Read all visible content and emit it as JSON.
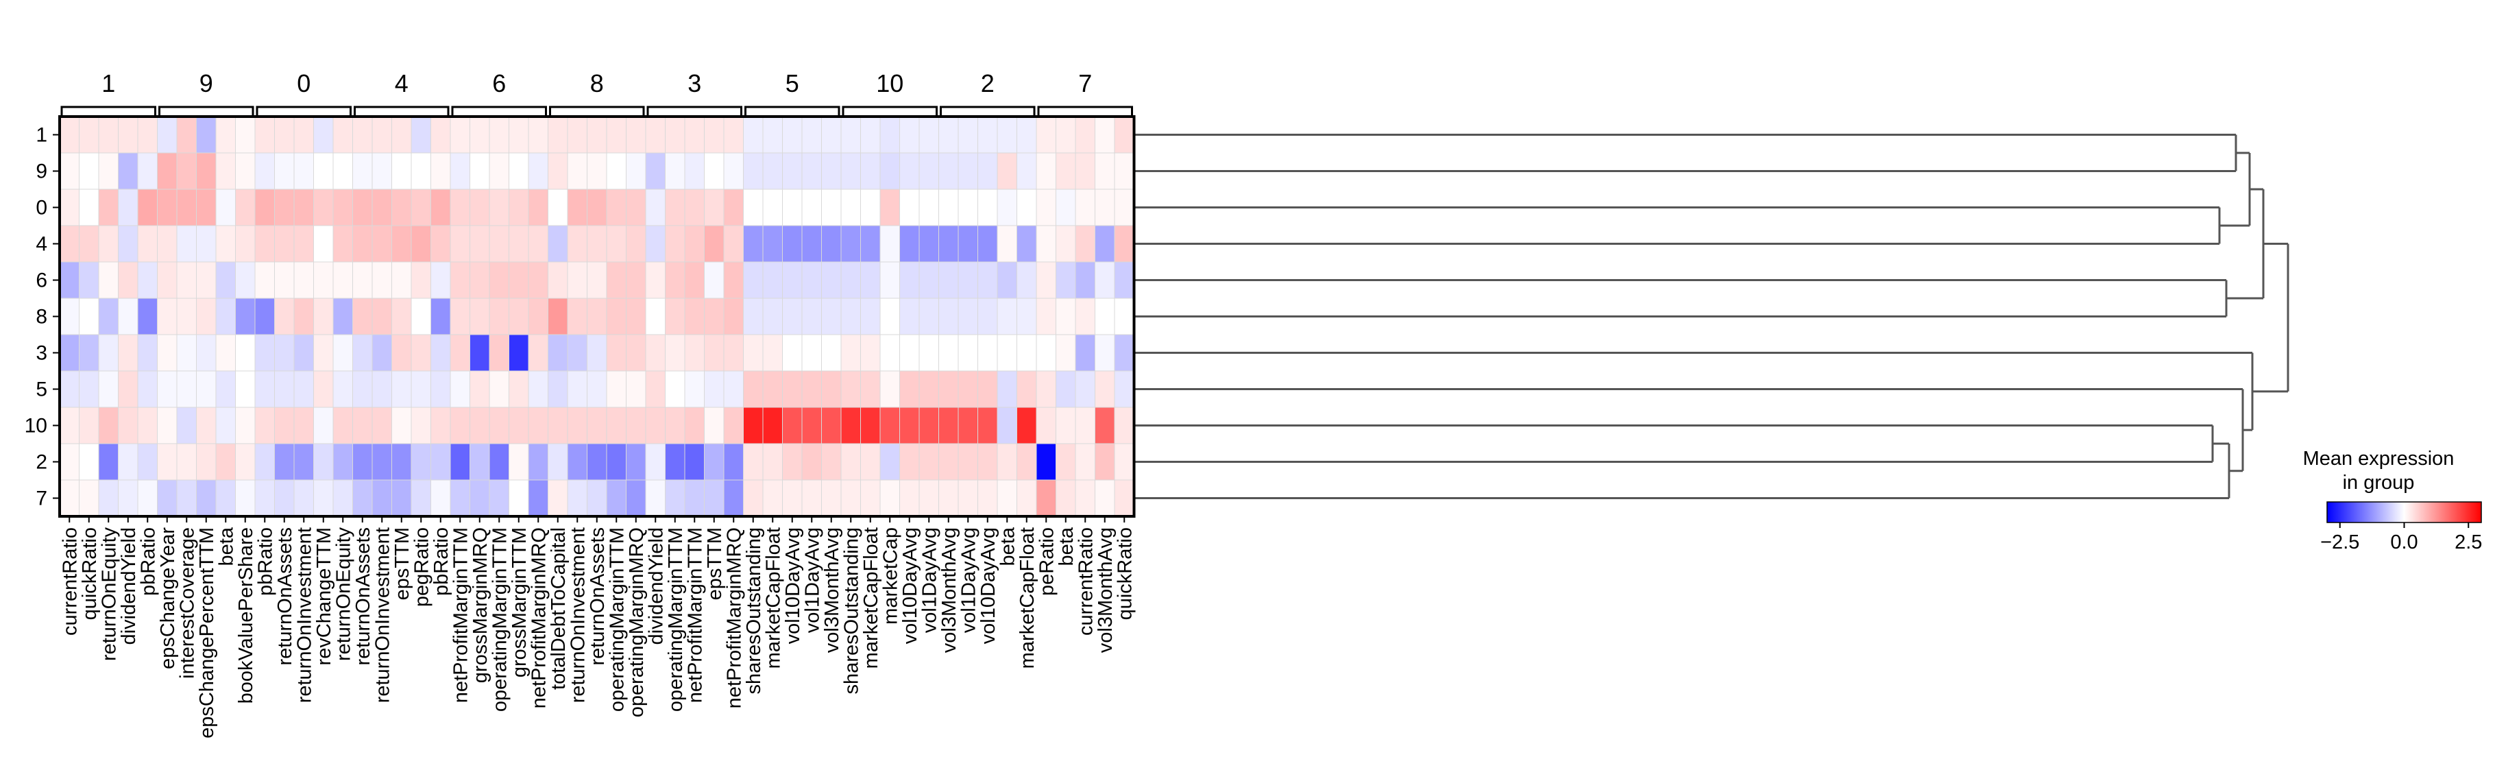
{
  "chart_data": {
    "type": "heatmap",
    "title": "",
    "xlabel": "",
    "ylabel": "",
    "group_labels": [
      "1",
      "9",
      "0",
      "4",
      "6",
      "8",
      "3",
      "5",
      "10",
      "2",
      "7"
    ],
    "columns": [
      "currentRatio",
      "quickRatio",
      "returnOnEquity",
      "dividendYield",
      "pbRatio",
      "epsChangeYear",
      "interestCoverage",
      "epsChangePercentTTM",
      "beta",
      "bookValuePerShare",
      "pbRatio",
      "returnOnAssets",
      "returnOnInvestment",
      "revChangeTTM",
      "returnOnEquity",
      "returnOnAssets",
      "returnOnInvestment",
      "epsTTM",
      "pegRatio",
      "pbRatio",
      "netProfitMarginTTM",
      "grossMarginMRQ",
      "operatingMarginTTM",
      "grossMarginTTM",
      "netProfitMarginMRQ",
      "totalDebtToCapital",
      "returnOnInvestment",
      "returnOnAssets",
      "operatingMarginTTM",
      "operatingMarginMRQ",
      "dividendYield",
      "operatingMarginTTM",
      "netProfitMarginTTM",
      "epsTTM",
      "netProfitMarginMRQ",
      "sharesOutstanding",
      "marketCapFloat",
      "vol10DayAvg",
      "vol1DayAvg",
      "vol3MonthAvg",
      "sharesOutstanding",
      "marketCapFloat",
      "marketCap",
      "vol10DayAvg",
      "vol1DayAvg",
      "vol3MonthAvg",
      "vol1DayAvg",
      "vol10DayAvg",
      "beta",
      "marketCapFloat",
      "peRatio",
      "beta",
      "currentRatio",
      "vol3MonthAvg",
      "quickRatio"
    ],
    "rows": [
      "1",
      "9",
      "0",
      "4",
      "6",
      "8",
      "3",
      "5",
      "10",
      "2",
      "7"
    ],
    "values": [
      [
        0.3,
        0.3,
        0.3,
        0.3,
        0.3,
        -0.3,
        0.6,
        -0.8,
        0.2,
        0.1,
        0.3,
        0.3,
        0.3,
        -0.3,
        0.3,
        0.3,
        0.3,
        0.3,
        -0.4,
        0.3,
        0.2,
        0.2,
        0.2,
        0.2,
        0.2,
        0.3,
        0.3,
        0.3,
        0.3,
        0.3,
        0.3,
        0.3,
        0.3,
        0.3,
        0.3,
        -0.2,
        -0.2,
        -0.2,
        -0.2,
        -0.2,
        -0.2,
        -0.2,
        -0.3,
        -0.2,
        -0.2,
        -0.2,
        -0.2,
        -0.2,
        -0.2,
        -0.2,
        0.2,
        0.2,
        0.3,
        0.1,
        0.4
      ],
      [
        0.1,
        0.0,
        0.1,
        -0.8,
        -0.2,
        0.9,
        0.7,
        0.9,
        0.2,
        0.1,
        -0.2,
        -0.1,
        -0.1,
        0.0,
        0.0,
        -0.1,
        -0.1,
        0.0,
        0.0,
        0.1,
        -0.2,
        0.0,
        0.1,
        0.0,
        -0.2,
        0.3,
        0.1,
        0.1,
        0.0,
        -0.1,
        -0.6,
        -0.1,
        -0.2,
        0.0,
        -0.1,
        -0.3,
        -0.3,
        -0.3,
        -0.3,
        -0.3,
        -0.3,
        -0.3,
        -0.4,
        -0.3,
        -0.3,
        -0.3,
        -0.3,
        -0.3,
        0.4,
        -0.2,
        0.1,
        0.3,
        0.3,
        0.1,
        0.1
      ],
      [
        0.2,
        0.0,
        0.7,
        -0.3,
        1.0,
        0.9,
        0.9,
        0.9,
        -0.1,
        0.5,
        0.9,
        0.8,
        0.8,
        0.6,
        0.7,
        0.8,
        0.8,
        0.7,
        0.6,
        0.9,
        0.5,
        0.5,
        0.4,
        0.5,
        0.7,
        0.0,
        0.8,
        0.8,
        0.6,
        0.6,
        -0.2,
        0.5,
        0.5,
        0.4,
        0.7,
        0.0,
        0.0,
        0.0,
        0.0,
        0.0,
        0.0,
        0.0,
        0.6,
        0.0,
        0.0,
        0.0,
        0.0,
        0.0,
        -0.1,
        0.0,
        0.1,
        -0.1,
        0.1,
        0.1,
        0.1
      ],
      [
        0.5,
        0.5,
        0.3,
        -0.4,
        0.3,
        0.3,
        -0.2,
        -0.2,
        0.2,
        0.3,
        0.5,
        0.5,
        0.5,
        0.0,
        0.6,
        0.7,
        0.7,
        0.8,
        0.9,
        0.6,
        0.4,
        0.4,
        0.4,
        0.4,
        0.4,
        -0.6,
        0.4,
        0.4,
        0.4,
        0.5,
        -0.4,
        0.5,
        0.6,
        0.9,
        0.5,
        -1.2,
        -1.2,
        -1.3,
        -1.3,
        -1.3,
        -1.2,
        -1.2,
        -0.1,
        -1.3,
        -1.3,
        -1.3,
        -1.3,
        -1.3,
        0.1,
        -1.0,
        0.1,
        0.2,
        0.5,
        -1.0,
        0.7
      ],
      [
        -0.9,
        -0.5,
        0.1,
        0.4,
        -0.3,
        0.3,
        0.2,
        0.2,
        -0.5,
        -0.2,
        0.1,
        0.1,
        0.1,
        0.1,
        0.1,
        0.1,
        0.1,
        0.1,
        0.3,
        -0.2,
        0.5,
        0.5,
        0.6,
        0.6,
        0.6,
        0.3,
        0.2,
        0.2,
        0.6,
        0.6,
        0.2,
        0.6,
        0.7,
        -0.1,
        0.7,
        -0.4,
        -0.4,
        -0.4,
        -0.4,
        -0.4,
        -0.4,
        -0.4,
        -0.1,
        -0.4,
        -0.4,
        -0.4,
        -0.4,
        -0.4,
        -0.6,
        -0.3,
        0.2,
        -0.5,
        -0.8,
        -0.2,
        -0.6
      ],
      [
        -0.1,
        0.0,
        -0.7,
        -0.1,
        -1.4,
        0.2,
        0.2,
        0.3,
        -0.4,
        -1.2,
        -1.4,
        0.4,
        0.6,
        0.3,
        -0.9,
        0.6,
        0.6,
        0.4,
        0.0,
        -1.3,
        0.4,
        0.4,
        0.5,
        0.5,
        0.6,
        1.2,
        0.5,
        0.5,
        0.6,
        0.6,
        0.0,
        0.5,
        0.6,
        0.6,
        0.7,
        -0.3,
        -0.3,
        -0.3,
        -0.3,
        -0.3,
        -0.3,
        -0.3,
        0.0,
        -0.3,
        -0.3,
        -0.3,
        -0.3,
        -0.3,
        -0.2,
        -0.2,
        0.2,
        0.1,
        0.2,
        0.0,
        0.0
      ],
      [
        -0.9,
        -0.7,
        -0.2,
        0.3,
        -0.4,
        0.1,
        -0.1,
        -0.2,
        0.1,
        0.0,
        -0.4,
        -0.4,
        -0.6,
        0.2,
        -0.1,
        -0.4,
        -0.7,
        0.5,
        0.4,
        -0.4,
        0.5,
        -2.1,
        0.6,
        -2.4,
        0.4,
        -0.7,
        -0.6,
        -0.3,
        0.5,
        0.5,
        0.3,
        0.2,
        0.3,
        0.4,
        0.4,
        0.2,
        0.2,
        0.0,
        0.0,
        0.0,
        0.2,
        0.2,
        0.0,
        0.0,
        0.0,
        0.0,
        0.0,
        0.0,
        0.0,
        0.0,
        0.0,
        0.1,
        -0.9,
        -0.1,
        -0.7
      ],
      [
        -0.3,
        -0.3,
        -0.1,
        0.4,
        -0.3,
        -0.1,
        -0.1,
        -0.1,
        -0.3,
        0.0,
        -0.3,
        -0.3,
        -0.3,
        0.3,
        -0.2,
        -0.3,
        -0.3,
        -0.2,
        -0.2,
        -0.3,
        -0.1,
        0.3,
        0.1,
        0.3,
        -0.2,
        -0.4,
        -0.2,
        -0.2,
        0.1,
        0.1,
        0.4,
        0.0,
        -0.1,
        -0.2,
        -0.2,
        0.6,
        0.6,
        0.6,
        0.6,
        0.6,
        0.5,
        0.5,
        0.1,
        0.6,
        0.6,
        0.6,
        0.6,
        0.6,
        -0.4,
        0.5,
        0.3,
        -0.4,
        -0.3,
        0.3,
        -0.3
      ],
      [
        0.2,
        0.3,
        0.7,
        0.4,
        0.3,
        0.1,
        -0.4,
        0.3,
        -0.2,
        0.1,
        0.4,
        0.5,
        0.5,
        -0.1,
        0.5,
        0.5,
        0.5,
        0.1,
        0.2,
        0.4,
        0.5,
        0.5,
        0.5,
        0.5,
        0.5,
        0.5,
        0.5,
        0.5,
        0.5,
        0.5,
        0.5,
        0.5,
        0.6,
        0.1,
        0.6,
        2.6,
        2.6,
        2.0,
        2.0,
        2.0,
        2.4,
        2.4,
        2.0,
        2.0,
        2.0,
        2.0,
        2.0,
        2.0,
        -0.5,
        2.5,
        0.3,
        0.2,
        0.2,
        1.8,
        0.3
      ],
      [
        0.1,
        0.0,
        -1.5,
        -0.2,
        -0.4,
        0.2,
        0.2,
        0.3,
        0.5,
        0.2,
        -0.4,
        -1.2,
        -1.2,
        -0.4,
        -0.9,
        -1.3,
        -1.3,
        -1.3,
        -0.6,
        -0.6,
        -1.8,
        -0.7,
        -1.6,
        0.1,
        -1.0,
        -0.3,
        -1.2,
        -1.5,
        -1.6,
        -1.2,
        -0.2,
        -1.7,
        -1.8,
        -0.9,
        -1.4,
        0.3,
        0.3,
        0.5,
        0.6,
        0.5,
        0.3,
        0.3,
        -0.5,
        0.5,
        0.5,
        0.5,
        0.5,
        0.5,
        0.3,
        0.5,
        -2.9,
        0.4,
        0.2,
        0.7,
        0.2
      ],
      [
        0.1,
        0.1,
        -0.3,
        -0.2,
        -0.1,
        -0.6,
        -0.4,
        -0.7,
        -0.4,
        -0.1,
        -0.3,
        -0.4,
        -0.3,
        -0.2,
        -0.3,
        -0.7,
        -0.9,
        -0.9,
        -0.4,
        -0.1,
        -0.6,
        -0.7,
        -0.6,
        0.0,
        -1.3,
        0.2,
        -0.3,
        -0.4,
        -0.9,
        -1.2,
        -0.1,
        -0.5,
        -0.6,
        -0.6,
        -1.3,
        0.3,
        0.2,
        0.2,
        0.2,
        0.2,
        0.2,
        0.2,
        0.1,
        0.2,
        0.2,
        0.2,
        0.2,
        0.2,
        0.1,
        0.2,
        1.1,
        0.3,
        0.2,
        0.1,
        0.3
      ]
    ],
    "colorbar": {
      "title": "Mean expression\nin group",
      "ticks": [
        -2.5,
        0.0,
        2.5
      ],
      "tick_labels": [
        "−2.5",
        "0.0",
        "2.5"
      ],
      "vmin": -3.0,
      "vmax": 3.0,
      "colormap": "bwr",
      "colors": [
        "#0000ff",
        "#ffffff",
        "#ff0000"
      ]
    },
    "dendrogram": {
      "leaf_order": [
        "1",
        "9",
        "0",
        "4",
        "6",
        "8",
        "3",
        "5",
        "10",
        "2",
        "7"
      ],
      "line_color": "#555555"
    },
    "grid_line_color": "#d9d9d9"
  }
}
